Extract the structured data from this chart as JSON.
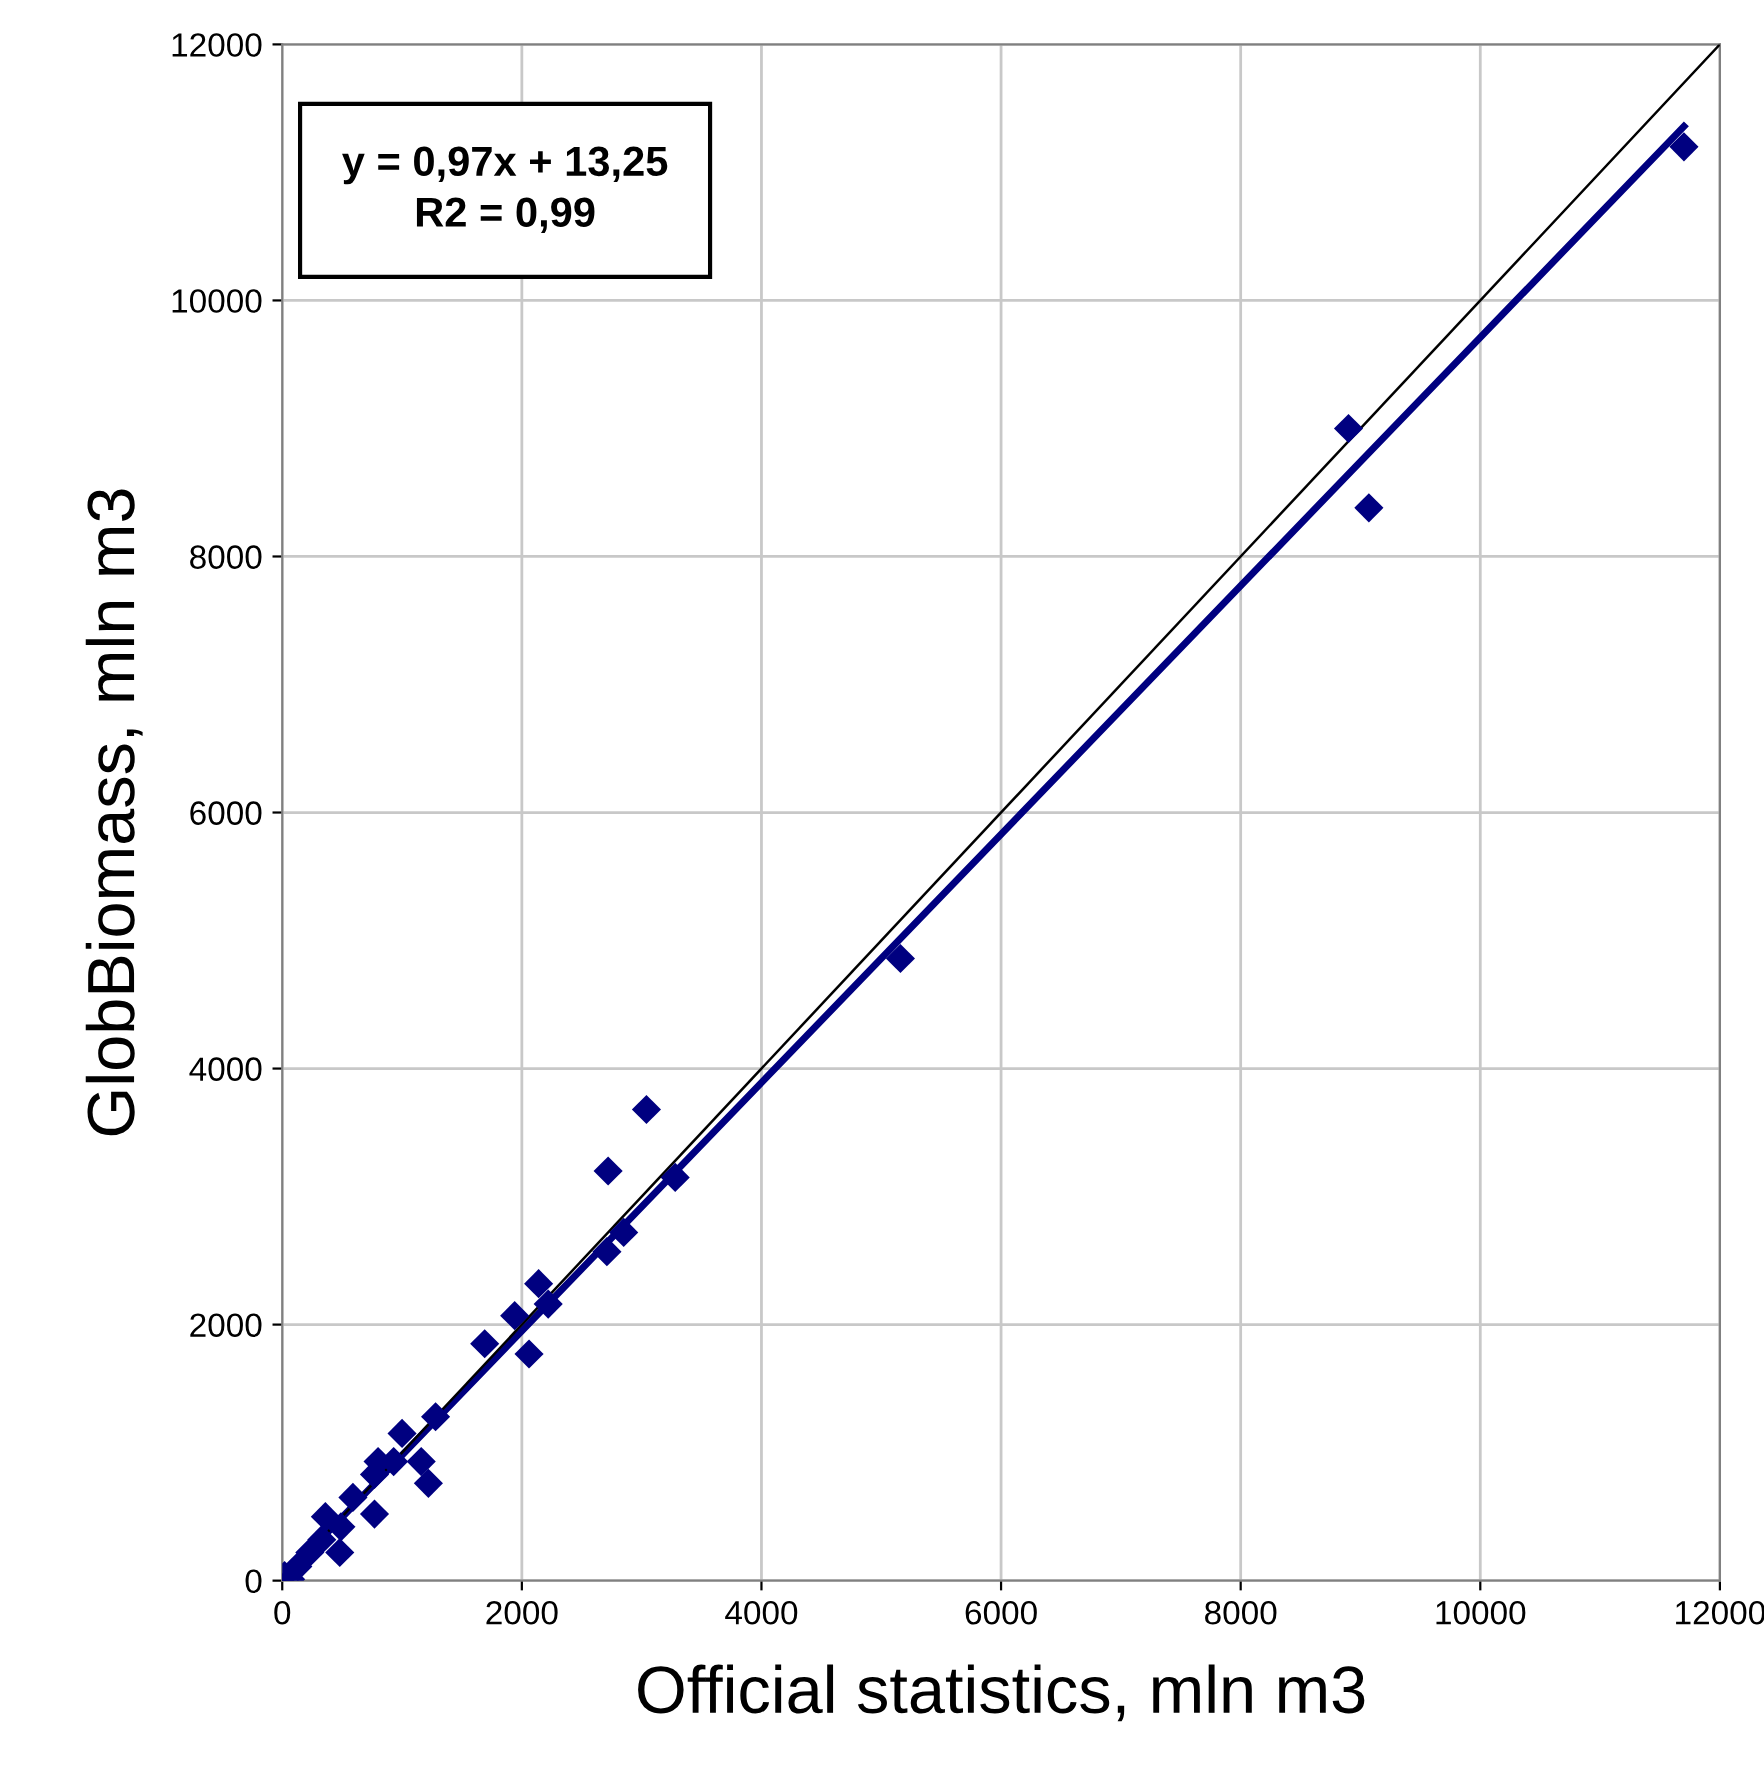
{
  "chart_data": {
    "type": "scatter",
    "xlabel": "Official statistics, mln m3",
    "ylabel": "GlobBiomass, mln m3",
    "annotations": [
      "y = 0,97x + 13,25\nR2 = 0,99"
    ],
    "series": [
      {
        "color": "#000080",
        "marker": "diamond",
        "x": [
          11700,
          8900,
          9070,
          5160,
          3040,
          2720,
          3280,
          2850,
          2710,
          2140,
          2220,
          1940,
          1690,
          2060,
          1280,
          1000,
          1160,
          1220,
          800,
          770,
          930,
          590,
          770,
          360,
          490,
          480,
          330,
          230,
          130,
          20,
          70
        ],
        "values": [
          11200,
          9000,
          8380,
          4860,
          3680,
          3200,
          3150,
          2720,
          2570,
          2320,
          2160,
          2070,
          1850,
          1770,
          1280,
          1150,
          930,
          760,
          930,
          830,
          930,
          650,
          520,
          500,
          420,
          220,
          320,
          220,
          110,
          40,
          10
        ]
      },
      {
        "type": "line",
        "color": "#000080",
        "marker": "none",
        "line_style": "solid",
        "x": [
          0,
          11700
        ],
        "values": [
          10,
          11360
        ]
      },
      {
        "type": "line",
        "color": "#000000",
        "marker": "none",
        "line_style": "solid",
        "x": [
          0,
          12000
        ],
        "values": [
          0,
          12000
        ]
      }
    ],
    "xlim": [
      0,
      12000
    ],
    "ylim": [
      0,
      12000
    ],
    "xticks": [
      0,
      2000,
      4000,
      6000,
      8000,
      10000,
      12000
    ],
    "yticks": [
      0,
      2000,
      4000,
      6000,
      8000,
      10000,
      12000
    ],
    "grid": true,
    "legend": false
  }
}
